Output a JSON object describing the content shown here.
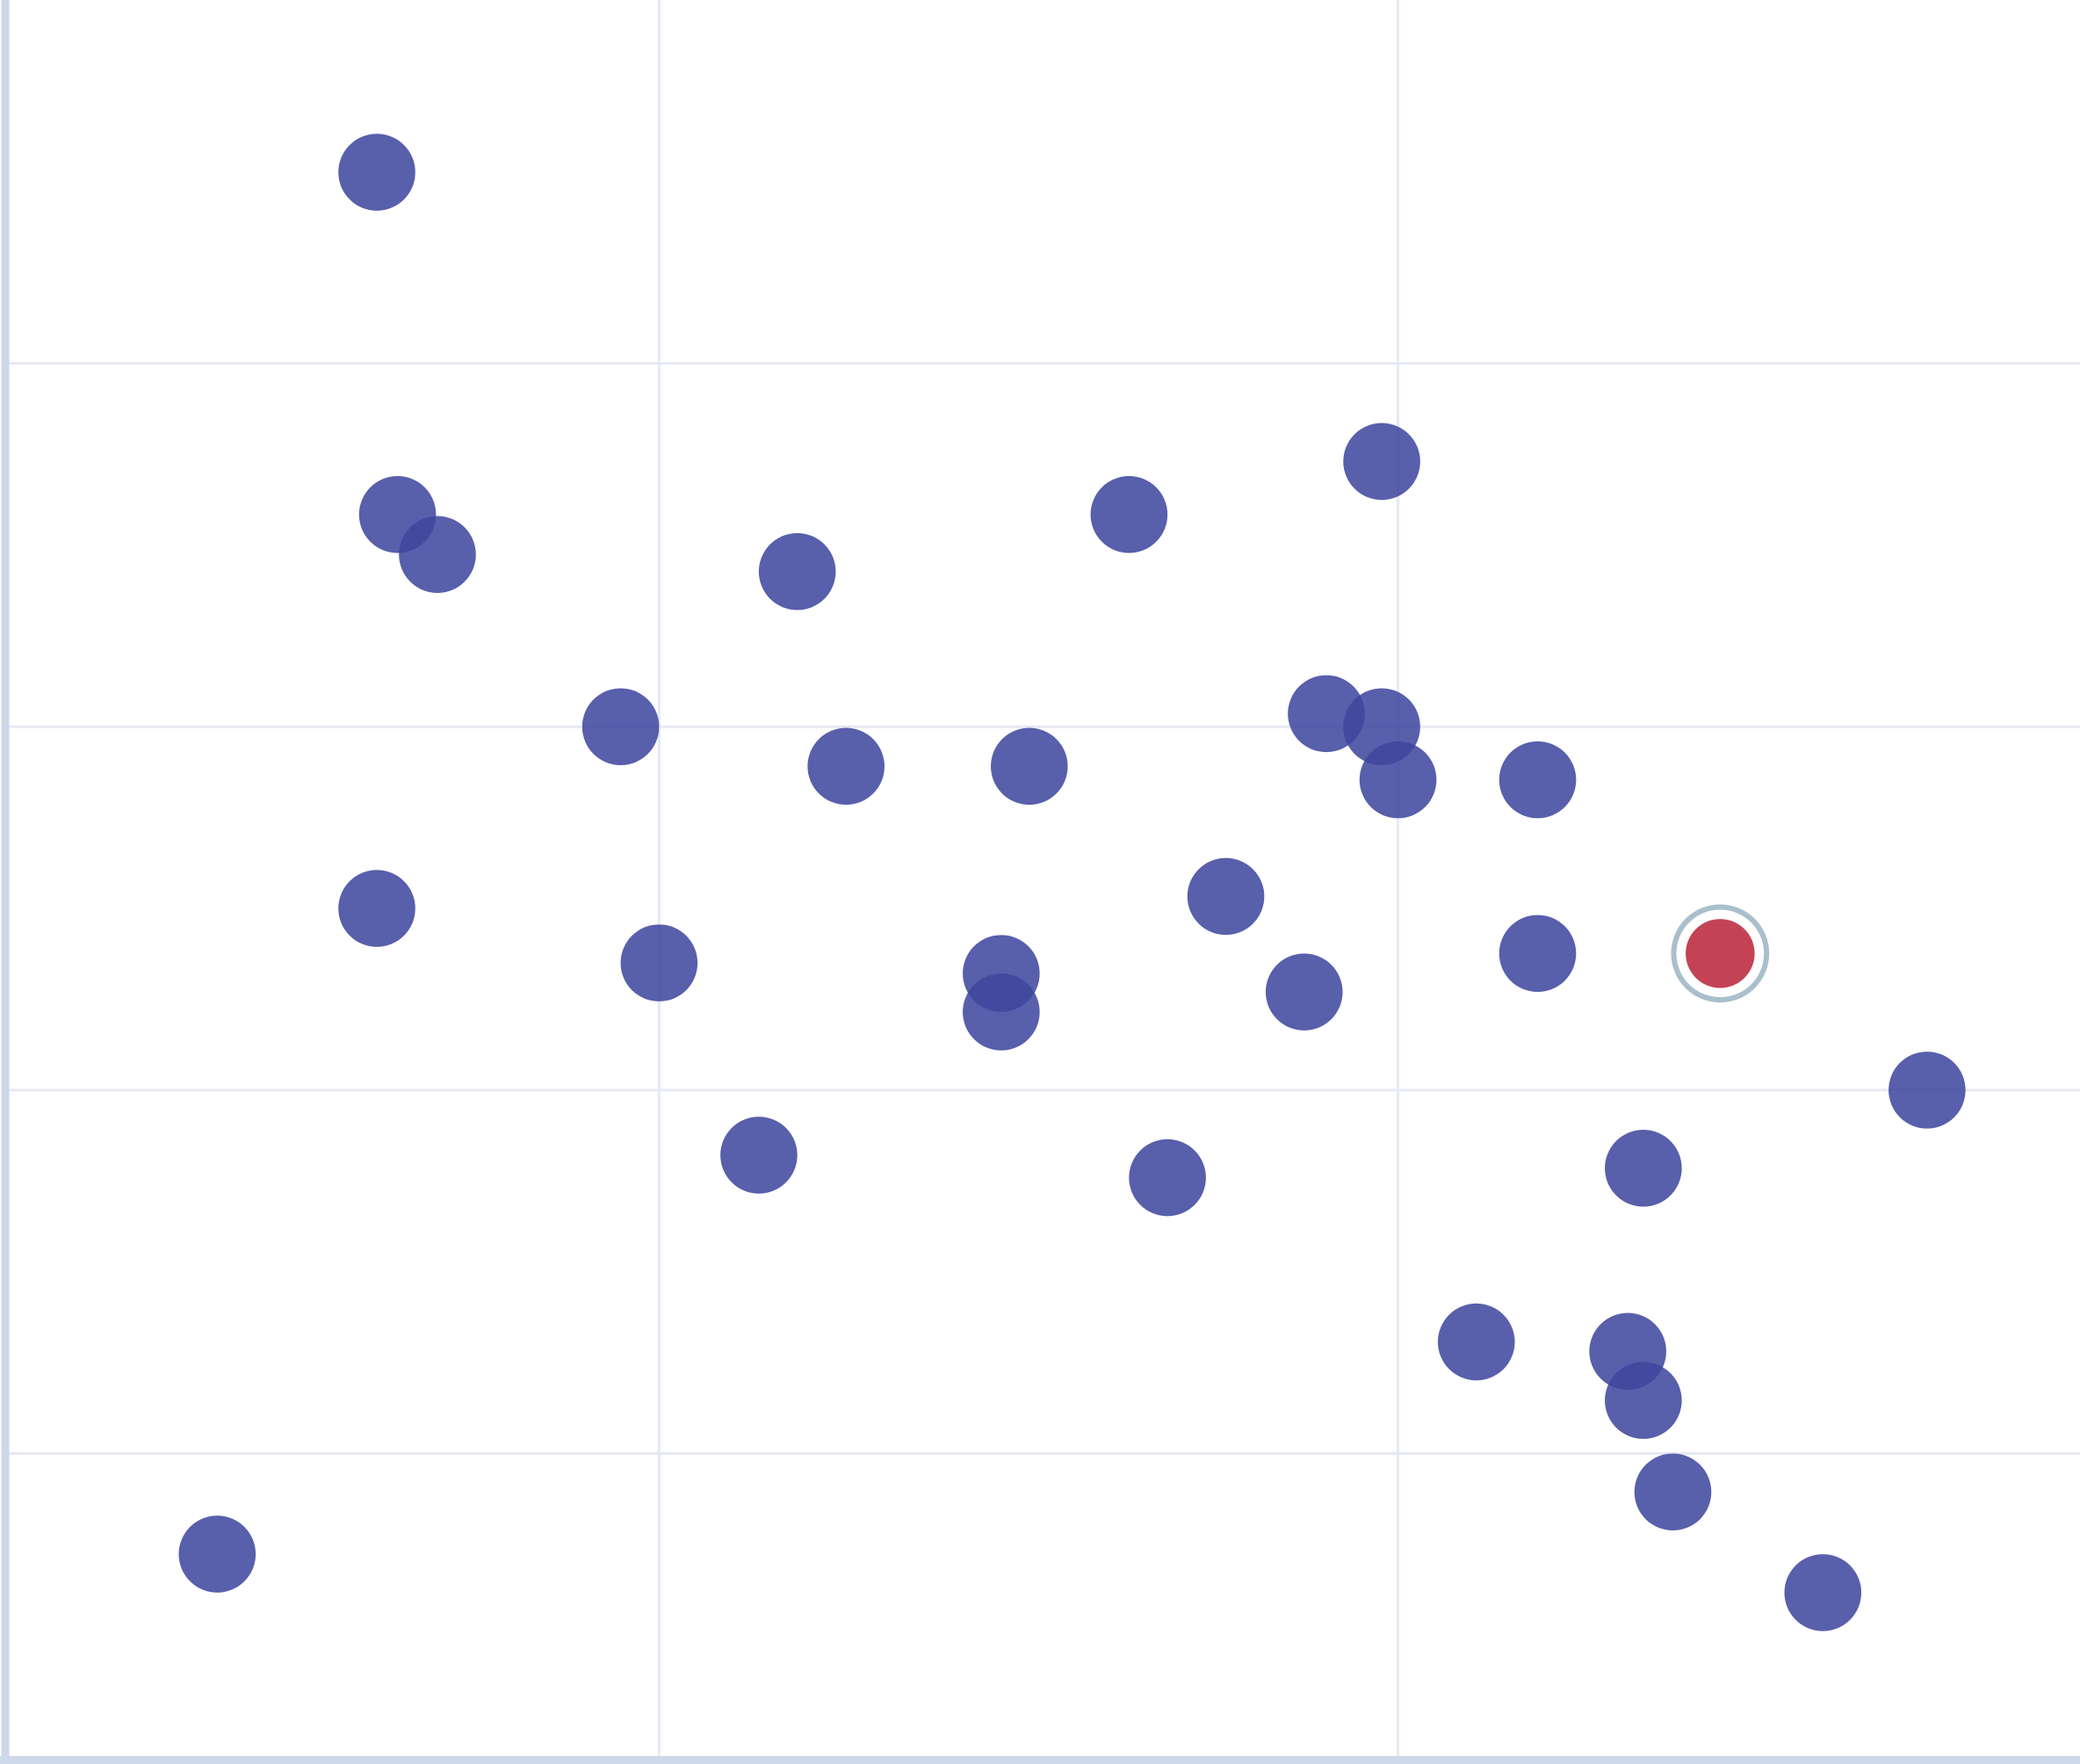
{
  "chart_data": {
    "type": "scatter",
    "title": "",
    "xlabel": "",
    "ylabel": "",
    "xlim": [
      0.117,
      2.923
    ],
    "ylim": [
      0.16,
      5.0
    ],
    "x_gridlines": [
      1,
      2
    ],
    "y_gridlines": [
      1,
      2,
      3,
      4
    ],
    "grid": true,
    "legend": "none",
    "colors": {
      "point": "#3f479f",
      "highlight": "#c0394b",
      "highlight_ring": "#a9bfcc",
      "axis": "#cdd8ea",
      "grid": "#e6e9f4"
    },
    "points": [
      {
        "x": 0.618,
        "y": 4.526
      },
      {
        "x": 0.646,
        "y": 3.584
      },
      {
        "x": 0.7,
        "y": 3.474
      },
      {
        "x": 1.187,
        "y": 3.427
      },
      {
        "x": 1.636,
        "y": 3.584
      },
      {
        "x": 1.978,
        "y": 3.73
      },
      {
        "x": 0.948,
        "y": 3.0
      },
      {
        "x": 1.253,
        "y": 2.891
      },
      {
        "x": 1.501,
        "y": 2.891
      },
      {
        "x": 1.903,
        "y": 3.036
      },
      {
        "x": 1.978,
        "y": 3.0
      },
      {
        "x": 2.0,
        "y": 2.854
      },
      {
        "x": 2.189,
        "y": 2.854
      },
      {
        "x": 0.618,
        "y": 2.5
      },
      {
        "x": 1.0,
        "y": 2.35
      },
      {
        "x": 1.463,
        "y": 2.321
      },
      {
        "x": 1.463,
        "y": 2.215
      },
      {
        "x": 1.767,
        "y": 2.533
      },
      {
        "x": 1.873,
        "y": 2.27
      },
      {
        "x": 2.189,
        "y": 2.376
      },
      {
        "x": 2.436,
        "y": 2.376,
        "highlighted": true
      },
      {
        "x": 2.716,
        "y": 2.0
      },
      {
        "x": 1.135,
        "y": 1.821
      },
      {
        "x": 1.688,
        "y": 1.759
      },
      {
        "x": 2.332,
        "y": 1.785
      },
      {
        "x": 2.106,
        "y": 1.307
      },
      {
        "x": 2.311,
        "y": 1.281
      },
      {
        "x": 2.332,
        "y": 1.146
      },
      {
        "x": 2.372,
        "y": 0.894
      },
      {
        "x": 2.575,
        "y": 0.617
      },
      {
        "x": 0.402,
        "y": 0.723
      }
    ]
  }
}
